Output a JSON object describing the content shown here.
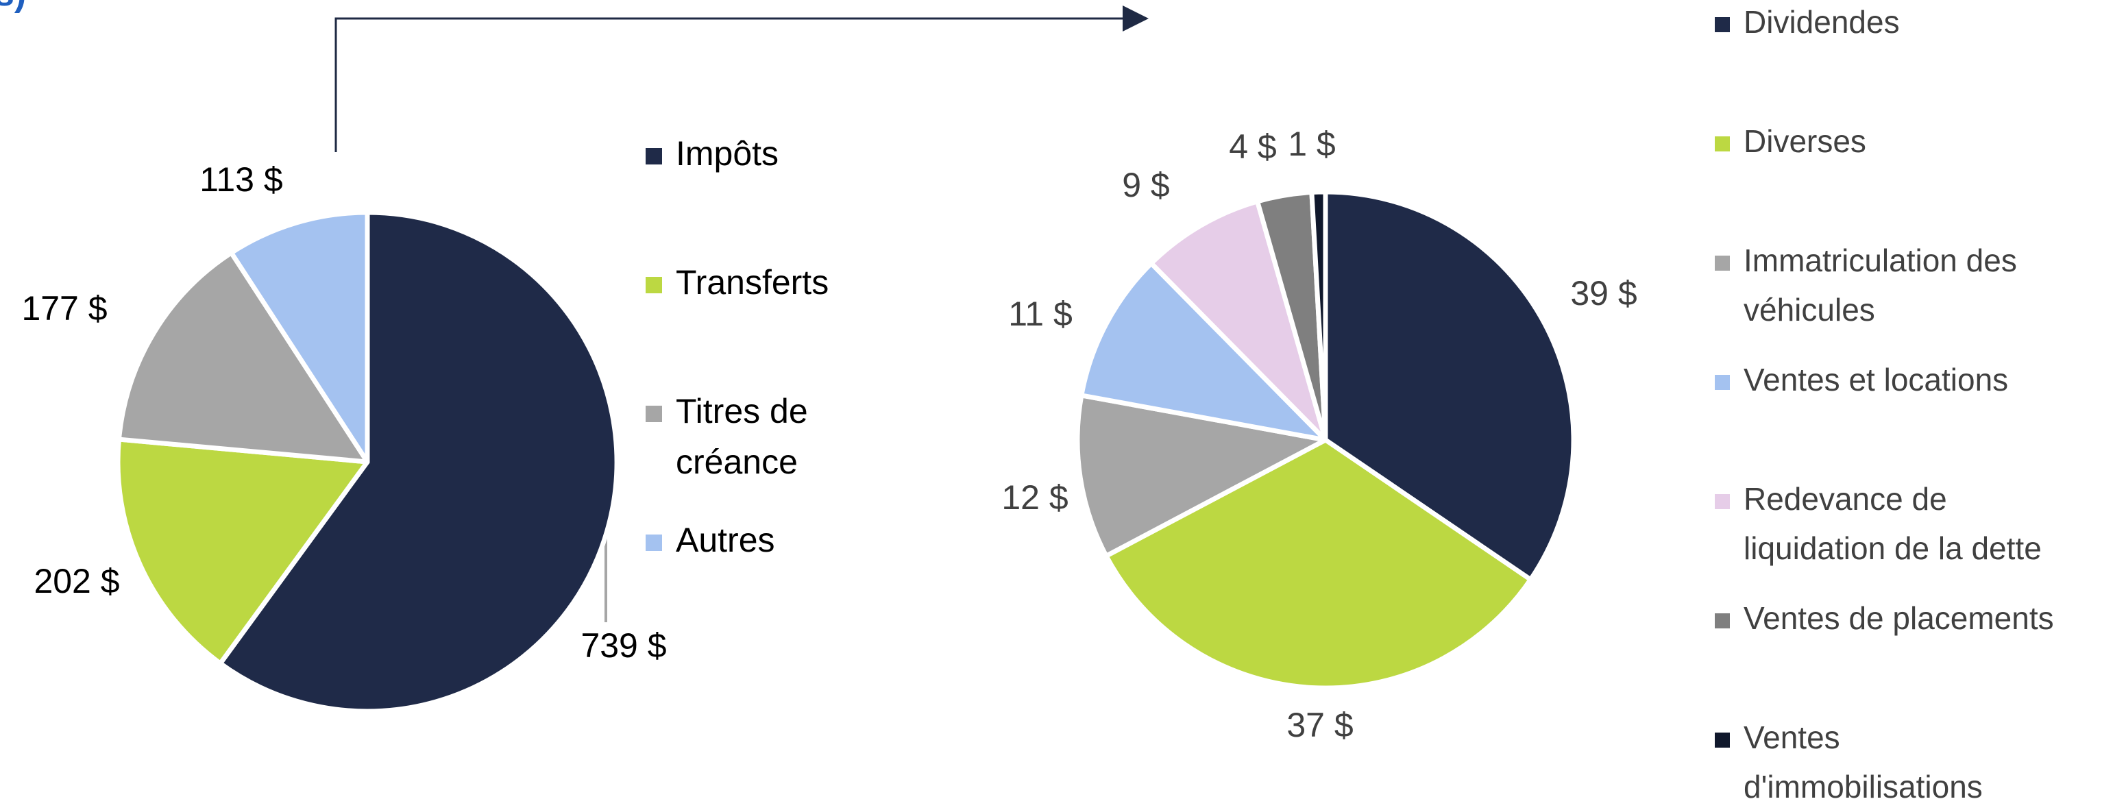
{
  "colors": {
    "text_primary": "#000000",
    "text_secondary": "#404040",
    "leader_line": "#a6a6a6",
    "connector": "#1f2a44",
    "title_fragment": "#1f5fbf",
    "slice_border": "#ffffff"
  },
  "title_fragment": "s)",
  "chart_data": [
    {
      "type": "pie",
      "series": [
        {
          "values": [
            739,
            202,
            177,
            113
          ],
          "labels": [
            "739 $",
            "202 $",
            "177 $",
            "113 $"
          ],
          "colors": [
            "#1f2a48",
            "#bcd842",
            "#a6a6a6",
            "#a4c2f0"
          ]
        }
      ],
      "categories": [
        "Impôts",
        "Transferts",
        "Titres de créance",
        "Autres"
      ],
      "legend": {
        "position": "right",
        "items": [
          {
            "lines": [
              "Impôts"
            ],
            "color": "#1f2a48"
          },
          {
            "lines": [
              "Transferts"
            ],
            "color": "#bcd842"
          },
          {
            "lines": [
              "Titres de",
              "créance"
            ],
            "color": "#a6a6a6"
          },
          {
            "lines": [
              "Autres"
            ],
            "color": "#a4c2f0"
          }
        ]
      }
    },
    {
      "type": "pie",
      "series": [
        {
          "values": [
            39,
            37,
            12,
            11,
            9,
            4,
            1
          ],
          "labels": [
            "39 $",
            "37 $",
            "12 $",
            "11 $",
            "9 $",
            "4 $",
            "1 $"
          ],
          "colors": [
            "#1f2a48",
            "#bcd842",
            "#a6a6a6",
            "#a4c2f0",
            "#e6cde8",
            "#7f7f7f",
            "#10182c"
          ]
        }
      ],
      "categories": [
        "Dividendes",
        "Diverses",
        "Immatriculation des véhicules",
        "Ventes et locations",
        "Redevance de liquidation de la  dette",
        "Ventes de placements",
        "Ventes d'immobilisations"
      ],
      "legend": {
        "position": "right",
        "items": [
          {
            "lines": [
              "Dividendes"
            ],
            "color": "#1f2a48"
          },
          {
            "lines": [
              "Diverses"
            ],
            "color": "#bcd842"
          },
          {
            "lines": [
              "Immatriculation des",
              "véhicules"
            ],
            "color": "#a6a6a6"
          },
          {
            "lines": [
              "Ventes et locations"
            ],
            "color": "#a4c2f0"
          },
          {
            "lines": [
              "Redevance de",
              "liquidation de la  dette"
            ],
            "color": "#e6cde8"
          },
          {
            "lines": [
              "Ventes de placements"
            ],
            "color": "#7f7f7f"
          },
          {
            "lines": [
              "Ventes",
              "d'immobilisations"
            ],
            "color": "#10182c"
          }
        ]
      }
    }
  ]
}
